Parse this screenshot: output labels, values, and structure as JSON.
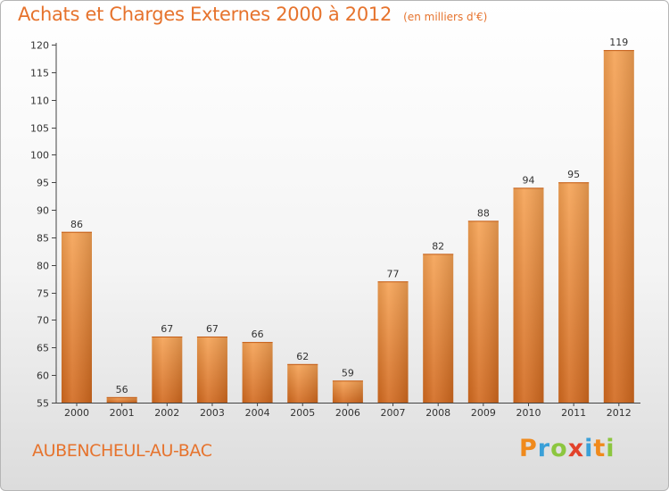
{
  "header": {
    "title": "Achats et Charges Externes 2000 à 2012",
    "subtitle": "(en milliers d'€)"
  },
  "footer": {
    "city": "AUBENCHEUL-AU-BAC",
    "logo": "Proxiti"
  },
  "colors": {
    "accent": "#e6732d",
    "bar_light": "#f5a254",
    "bar_dark": "#d2691e",
    "logo_letters": [
      "#f08a1c",
      "#3aa0d8",
      "#8cc63f",
      "#e2422b",
      "#3aa0d8",
      "#f08a1c",
      "#8cc63f"
    ]
  },
  "chart_data": {
    "type": "bar",
    "title": "Achats et Charges Externes 2000 à 2012",
    "subtitle": "(en milliers d'€)",
    "categories": [
      "2000",
      "2001",
      "2002",
      "2003",
      "2004",
      "2005",
      "2006",
      "2007",
      "2008",
      "2009",
      "2010",
      "2011",
      "2012"
    ],
    "values": [
      86,
      56,
      67,
      67,
      66,
      62,
      59,
      77,
      82,
      88,
      94,
      95,
      119
    ],
    "ylim": [
      55,
      120
    ],
    "yticks": [
      55,
      60,
      65,
      70,
      75,
      80,
      85,
      90,
      95,
      100,
      105,
      110,
      115,
      120
    ],
    "grid": false,
    "legend": "none"
  }
}
